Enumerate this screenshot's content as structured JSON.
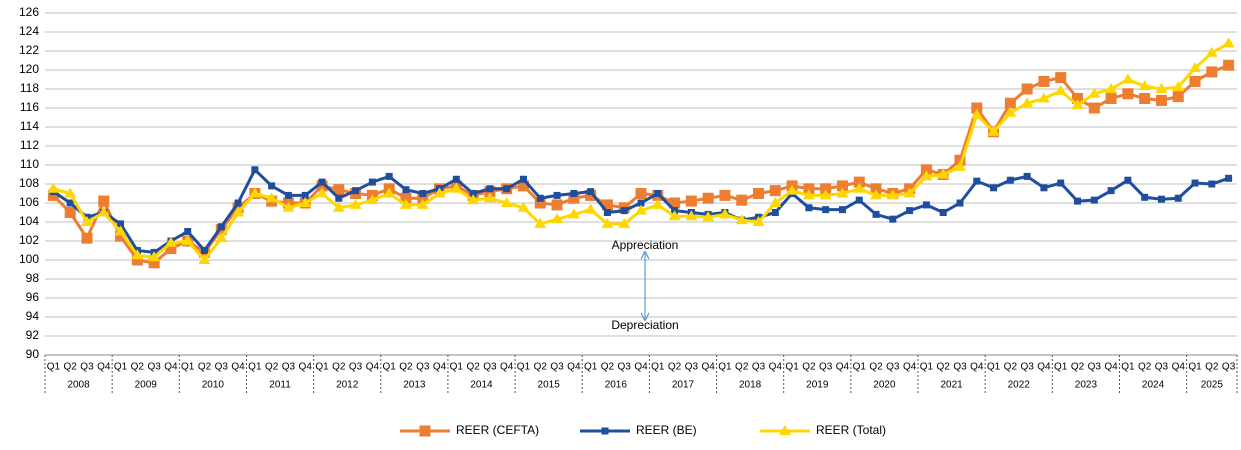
{
  "chart_data": {
    "type": "line",
    "categories": [
      "Q1",
      "Q2",
      "Q3",
      "Q4",
      "Q1",
      "Q2",
      "Q3",
      "Q4",
      "Q1",
      "Q2",
      "Q3",
      "Q4",
      "Q1",
      "Q2",
      "Q3",
      "Q4",
      "Q1",
      "Q2",
      "Q3",
      "Q4",
      "Q1",
      "Q2",
      "Q3",
      "Q4",
      "Q1",
      "Q2",
      "Q3",
      "Q4",
      "Q1",
      "Q2",
      "Q3",
      "Q4",
      "Q1",
      "Q2",
      "Q3",
      "Q4",
      "Q1",
      "Q2",
      "Q3",
      "Q4",
      "Q1",
      "Q2",
      "Q3",
      "Q4",
      "Q1",
      "Q2",
      "Q3",
      "Q4",
      "Q1",
      "Q2",
      "Q3",
      "Q4",
      "Q1",
      "Q2",
      "Q3",
      "Q4",
      "Q1",
      "Q2",
      "Q3",
      "Q4",
      "Q1",
      "Q2",
      "Q3",
      "Q4",
      "Q1",
      "Q2",
      "Q3",
      "Q4",
      "Q1",
      "Q2",
      "Q3"
    ],
    "years": [
      "2008",
      "2009",
      "2010",
      "2011",
      "2012",
      "2013",
      "2014",
      "2015",
      "2016",
      "2017",
      "2018",
      "2019",
      "2020",
      "2021",
      "2022",
      "2023",
      "2024",
      "2025"
    ],
    "series": [
      {
        "name": "REER (CEFTA)",
        "color": "#ed7d31",
        "marker": "square",
        "values": [
          106.8,
          105,
          102.3,
          106.2,
          102.5,
          100,
          99.7,
          101.2,
          102,
          100.8,
          103.2,
          105.5,
          107,
          106.2,
          106,
          106,
          107.8,
          107.4,
          107,
          106.8,
          107.5,
          106.5,
          106.5,
          107.5,
          107.8,
          106.8,
          107.2,
          107.5,
          107.8,
          106,
          105.8,
          106.5,
          106.8,
          105.8,
          105.5,
          107,
          106.8,
          106,
          106.2,
          106.5,
          106.8,
          106.3,
          107,
          107.3,
          107.8,
          107.5,
          107.5,
          107.8,
          108.2,
          107.5,
          107,
          107.5,
          109.5,
          109,
          110.5,
          116,
          113.5,
          116.5,
          118,
          118.8,
          119.2,
          117,
          116,
          117,
          117.5,
          117,
          116.8,
          117.2,
          118.8,
          119.8,
          120.5
        ]
      },
      {
        "name": "REER (BE)",
        "color": "#1f4e9c",
        "marker": "small-square",
        "values": [
          107.2,
          106,
          104.5,
          105,
          103.8,
          101,
          100.8,
          102,
          103,
          101,
          103.5,
          106,
          109.5,
          107.8,
          106.8,
          106.8,
          108.2,
          106.5,
          107.3,
          108.2,
          108.8,
          107.4,
          107,
          107.5,
          108.5,
          107,
          107.5,
          107.5,
          108.5,
          106.5,
          106.8,
          107,
          107.2,
          105,
          105.2,
          106,
          107,
          105.2,
          105,
          104.8,
          105,
          104.2,
          104.5,
          105,
          107,
          105.5,
          105.3,
          105.3,
          106.3,
          104.8,
          104.3,
          105.2,
          105.8,
          105,
          106,
          108.3,
          107.6,
          108.4,
          108.8,
          107.6,
          108.1,
          106.2,
          106.3,
          107.3,
          108.4,
          106.6,
          106.4,
          106.5,
          108.1,
          108,
          108.6
        ]
      },
      {
        "name": "REER (Total)",
        "color": "#ffd700",
        "marker": "triangle",
        "values": [
          107.5,
          107,
          104,
          105,
          103,
          100.5,
          100.3,
          101.8,
          102,
          100,
          102.3,
          105,
          107,
          106.5,
          105.5,
          106,
          107,
          105.5,
          105.8,
          106.3,
          107,
          105.8,
          105.8,
          107,
          107.5,
          106.3,
          106.5,
          106,
          105.5,
          103.8,
          104.3,
          104.8,
          105.3,
          103.8,
          103.8,
          105.2,
          105.8,
          104.6,
          104.6,
          104.5,
          104.8,
          104.2,
          104,
          106,
          107.3,
          106.8,
          106.8,
          107,
          107.5,
          106.8,
          106.8,
          107,
          108.8,
          109,
          109.8,
          115.3,
          113.5,
          115.5,
          116.5,
          117,
          117.8,
          116.3,
          117.5,
          118,
          119,
          118.3,
          118,
          118.2,
          120.2,
          121.8,
          122.8
        ]
      }
    ],
    "ylim": [
      90,
      126
    ],
    "yticks": [
      90,
      92,
      94,
      96,
      98,
      100,
      102,
      104,
      106,
      108,
      110,
      112,
      114,
      116,
      118,
      120,
      122,
      124,
      126
    ],
    "grid": true,
    "legend": "bottom",
    "annotations": [
      "Appreciation",
      "Depreciation"
    ]
  }
}
